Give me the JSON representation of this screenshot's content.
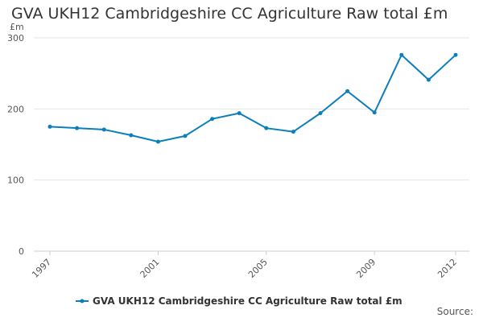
{
  "chart_data": {
    "type": "line",
    "title": "GVA UKH12 Cambridgeshire CC Agriculture Raw total £m",
    "y_unit": "£m",
    "xlabel": "",
    "ylabel": "",
    "x": [
      1997,
      1998,
      1999,
      2000,
      2001,
      2002,
      2003,
      2004,
      2005,
      2006,
      2007,
      2008,
      2009,
      2010,
      2011,
      2012
    ],
    "x_tick_labels": [
      "1997",
      "2001",
      "2005",
      "2009",
      "2012"
    ],
    "y_ticks": [
      0,
      100,
      200,
      300
    ],
    "ylim": [
      0,
      300
    ],
    "grid": true,
    "legend_position": "bottom",
    "series": [
      {
        "name": "GVA UKH12 Cambridgeshire CC Agriculture Raw total £m",
        "color": "#0b7fbc",
        "values": [
          175,
          173,
          171,
          163,
          154,
          162,
          186,
          194,
          173,
          168,
          194,
          225,
          195,
          276,
          241,
          276
        ]
      }
    ]
  },
  "source_label": "Source:"
}
